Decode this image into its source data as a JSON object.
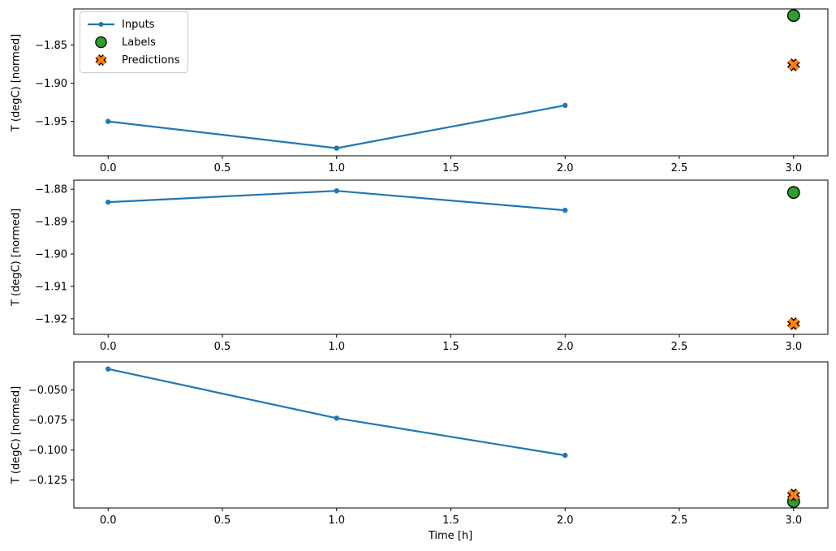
{
  "figure": {
    "xlabel": "Time [h]",
    "background": "#ffffff",
    "colors": {
      "spine": "#000000",
      "text": "#000000",
      "inputs": "#1f77b4",
      "labels": "#2ca02c",
      "predictions": "#ff7f0e",
      "marker_edge": "#000000",
      "legend_border": "#cccccc"
    },
    "legend": {
      "position": "upper-left-subplot-1",
      "items": [
        {
          "label": "Inputs",
          "marker": "line-dot",
          "color": "#1f77b4"
        },
        {
          "label": "Labels",
          "marker": "circle",
          "color": "#2ca02c"
        },
        {
          "label": "Predictions",
          "marker": "x",
          "color": "#ff7f0e"
        }
      ]
    }
  },
  "chart_data": [
    {
      "type": "line",
      "subplot": 1,
      "ylabel": "T (degC) [normed]",
      "xlim": [
        -0.15,
        3.15
      ],
      "ylim": [
        -1.995,
        -1.8028
      ],
      "xticks": [
        0.0,
        0.5,
        1.0,
        1.5,
        2.0,
        2.5,
        3.0
      ],
      "xtick_labels": [
        "0.0",
        "0.5",
        "1.0",
        "1.5",
        "2.0",
        "2.5",
        "3.0"
      ],
      "yticks": [
        -1.85,
        -1.9,
        -1.95
      ],
      "ytick_labels": [
        "−1.85",
        "−1.90",
        "−1.95"
      ],
      "grid": false,
      "series": [
        {
          "name": "Inputs",
          "type": "line",
          "color": "#1f77b4",
          "x": [
            0,
            1,
            2
          ],
          "y": [
            -1.95,
            -1.985,
            -1.929
          ]
        },
        {
          "name": "Labels",
          "type": "scatter-circle",
          "color": "#2ca02c",
          "edge": "#000000",
          "x": [
            3
          ],
          "y": [
            -1.8115
          ]
        },
        {
          "name": "Predictions",
          "type": "scatter-x",
          "color": "#ff7f0e",
          "edge": "#000000",
          "x": [
            3
          ],
          "y": [
            -1.876
          ]
        }
      ]
    },
    {
      "type": "line",
      "subplot": 2,
      "ylabel": "T (degC) [normed]",
      "xlim": [
        -0.15,
        3.15
      ],
      "ylim": [
        -1.9248,
        -1.8772
      ],
      "xticks": [
        0.0,
        0.5,
        1.0,
        1.5,
        2.0,
        2.5,
        3.0
      ],
      "xtick_labels": [
        "0.0",
        "0.5",
        "1.0",
        "1.5",
        "2.0",
        "2.5",
        "3.0"
      ],
      "yticks": [
        -1.88,
        -1.89,
        -1.9,
        -1.91,
        -1.92
      ],
      "ytick_labels": [
        "−1.88",
        "−1.89",
        "−1.90",
        "−1.91",
        "−1.92"
      ],
      "grid": false,
      "series": [
        {
          "name": "Inputs",
          "type": "line",
          "color": "#1f77b4",
          "x": [
            0,
            1,
            2
          ],
          "y": [
            -1.884,
            -1.8805,
            -1.8865
          ]
        },
        {
          "name": "Labels",
          "type": "scatter-circle",
          "color": "#2ca02c",
          "edge": "#000000",
          "x": [
            3
          ],
          "y": [
            -1.881
          ]
        },
        {
          "name": "Predictions",
          "type": "scatter-x",
          "color": "#ff7f0e",
          "edge": "#000000",
          "x": [
            3
          ],
          "y": [
            -1.9215
          ]
        }
      ]
    },
    {
      "type": "line",
      "subplot": 3,
      "ylabel": "T (degC) [normed]",
      "xlabel": "Time [h]",
      "xlim": [
        -0.15,
        3.15
      ],
      "ylim": [
        -0.1484,
        -0.0266
      ],
      "xticks": [
        0.0,
        0.5,
        1.0,
        1.5,
        2.0,
        2.5,
        3.0
      ],
      "xtick_labels": [
        "0.0",
        "0.5",
        "1.0",
        "1.5",
        "2.0",
        "2.5",
        "3.0"
      ],
      "yticks": [
        -0.05,
        -0.075,
        -0.1,
        -0.125
      ],
      "ytick_labels": [
        "−0.050",
        "−0.075",
        "−0.100",
        "−0.125"
      ],
      "grid": false,
      "series": [
        {
          "name": "Inputs",
          "type": "line",
          "color": "#1f77b4",
          "x": [
            0,
            1,
            2
          ],
          "y": [
            -0.0325,
            -0.0735,
            -0.1045
          ]
        },
        {
          "name": "Labels",
          "type": "scatter-circle",
          "color": "#2ca02c",
          "edge": "#000000",
          "x": [
            3
          ],
          "y": [
            -0.143
          ]
        },
        {
          "name": "Predictions",
          "type": "scatter-x",
          "color": "#ff7f0e",
          "edge": "#000000",
          "x": [
            3
          ],
          "y": [
            -0.1375
          ]
        }
      ]
    }
  ]
}
